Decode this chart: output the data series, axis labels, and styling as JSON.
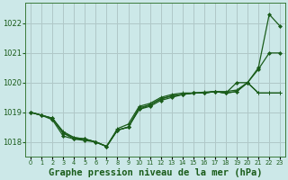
{
  "title": "Graphe pression niveau de la mer (hPa)",
  "yticks": [
    1018,
    1019,
    1020,
    1021,
    1022
  ],
  "ylim": [
    1017.5,
    1022.7
  ],
  "xlim": [
    -0.5,
    23.5
  ],
  "bg_color": "#cce8e8",
  "grid_color": "#b0c8c8",
  "line_color": "#1a5c1a",
  "line1": [
    1019.0,
    1018.9,
    1018.8,
    1018.3,
    1018.1,
    1018.05,
    1018.0,
    1017.85,
    1018.4,
    1018.5,
    1019.15,
    1019.25,
    1019.45,
    1019.55,
    1019.6,
    1019.65,
    1019.65,
    1019.7,
    1019.65,
    1020.0,
    1020.0,
    1020.5,
    1022.3,
    1021.9
  ],
  "line2": [
    1019.0,
    1018.9,
    1018.8,
    1018.35,
    1018.15,
    1018.1,
    1018.0,
    1017.85,
    1018.45,
    1018.6,
    1019.2,
    1019.3,
    1019.5,
    1019.6,
    1019.65,
    1019.65,
    1019.68,
    1019.7,
    1019.7,
    1019.75,
    1020.0,
    1019.65,
    1019.65,
    1019.65
  ],
  "line3": [
    1019.0,
    1018.9,
    1018.8,
    1018.3,
    1018.15,
    1018.1,
    1018.0,
    1017.85,
    1018.4,
    1018.5,
    1019.1,
    1019.25,
    1019.45,
    1019.55,
    1019.6,
    1019.65,
    1019.65,
    1019.7,
    1019.65,
    1019.7,
    1020.0,
    1019.65,
    1019.65,
    1019.65
  ],
  "line4": [
    1019.0,
    1018.9,
    1018.75,
    1018.2,
    1018.1,
    1018.1,
    1018.0,
    1017.85,
    1018.4,
    1018.5,
    1019.1,
    1019.2,
    1019.4,
    1019.5,
    1019.6,
    1019.65,
    1019.65,
    1019.7,
    1019.65,
    1019.7,
    1020.0,
    1020.45,
    1021.0,
    1021.0
  ],
  "title_color": "#1a5c1a",
  "title_fontsize": 7.5,
  "tick_fontsize": 6,
  "xtick_fontsize": 4.8
}
